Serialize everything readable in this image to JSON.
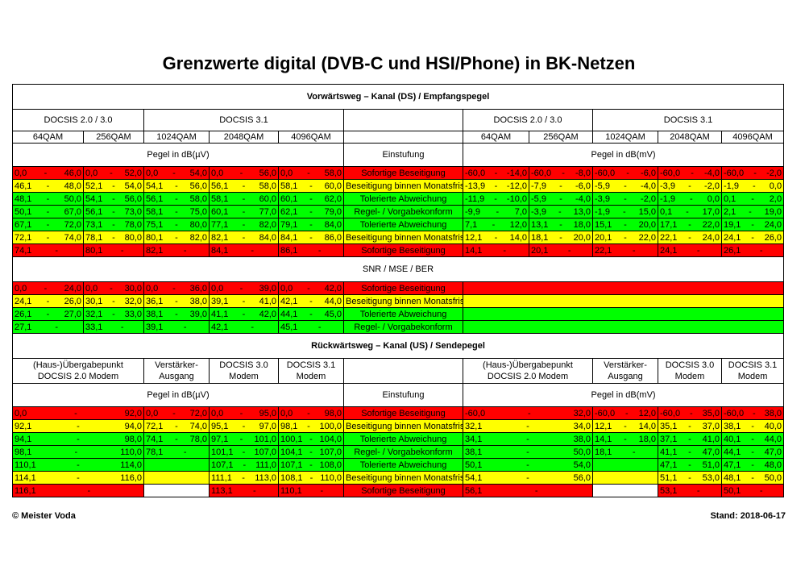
{
  "title": "Grenzwerte digital (DVB-C und HSI/Phone) in BK-Netzen",
  "footer": {
    "left": "© Meister Voda",
    "right": "Stand: 2018-06-17"
  },
  "colors": {
    "r": "#ff0000",
    "y": "#ffff00",
    "g": "#00ff00",
    "w": "#ffffff"
  },
  "downstream": {
    "title": "Vorwärtsweg – Kanal (DS) / Empfangspegel",
    "groups_left": [
      "DOCSIS 2.0 / 3.0",
      "DOCSIS 3.1"
    ],
    "groups_right": [
      "DOCSIS 2.0 / 3.0",
      "DOCSIS 3.1"
    ],
    "mods": [
      "64QAM",
      "256QAM",
      "1024QAM",
      "2048QAM",
      "4096QAM"
    ],
    "unit_left": "Pegel in dB(µV)",
    "unit_right": "Pegel in dB(mV)",
    "einstufung": "Einstufung",
    "rows": [
      {
        "color": "r",
        "label": "Sofortige Beseitigung",
        "left": [
          [
            "0,0",
            "46,0"
          ],
          [
            "0,0",
            "52,0"
          ],
          [
            "0,0",
            "54,0"
          ],
          [
            "0,0",
            "56,0"
          ],
          [
            "0,0",
            "58,0"
          ]
        ],
        "right": [
          [
            "-60,0",
            "-14,0"
          ],
          [
            "-60,0",
            "-8,0"
          ],
          [
            "-60,0",
            "-6,0"
          ],
          [
            "-60,0",
            "-4,0"
          ],
          [
            "-60,0",
            "-2,0"
          ]
        ]
      },
      {
        "color": "y",
        "label": "Beseitigung binnen Monatsfrist",
        "left": [
          [
            "46,1",
            "48,0"
          ],
          [
            "52,1",
            "54,0"
          ],
          [
            "54,1",
            "56,0"
          ],
          [
            "56,1",
            "58,0"
          ],
          [
            "58,1",
            "60,0"
          ]
        ],
        "right": [
          [
            "-13,9",
            "-12,0"
          ],
          [
            "-7,9",
            "-6,0"
          ],
          [
            "-5,9",
            "-4,0"
          ],
          [
            "-3,9",
            "-2,0"
          ],
          [
            "-1,9",
            "0,0"
          ]
        ]
      },
      {
        "color": "g",
        "label": "Tolerierte Abweichung",
        "left": [
          [
            "48,1",
            "50,0"
          ],
          [
            "54,1",
            "56,0"
          ],
          [
            "56,1",
            "58,0"
          ],
          [
            "58,1",
            "60,0"
          ],
          [
            "60,1",
            "62,0"
          ]
        ],
        "right": [
          [
            "-11,9",
            "-10,0"
          ],
          [
            "-5,9",
            "-4,0"
          ],
          [
            "-3,9",
            "-2,0"
          ],
          [
            "-1,9",
            "0,0"
          ],
          [
            "0,1",
            "2,0"
          ]
        ]
      },
      {
        "color": "g",
        "label": "Regel- / Vorgabekonform",
        "left": [
          [
            "50,1",
            "67,0"
          ],
          [
            "56,1",
            "73,0"
          ],
          [
            "58,1",
            "75,0"
          ],
          [
            "60,1",
            "77,0"
          ],
          [
            "62,1",
            "79,0"
          ]
        ],
        "right": [
          [
            "-9,9",
            "7,0"
          ],
          [
            "-3,9",
            "13,0"
          ],
          [
            "-1,9",
            "15,0"
          ],
          [
            "0,1",
            "17,0"
          ],
          [
            "2,1",
            "19,0"
          ]
        ]
      },
      {
        "color": "g",
        "label": "Tolerierte Abweichung",
        "left": [
          [
            "67,1",
            "72,0"
          ],
          [
            "73,1",
            "78,0"
          ],
          [
            "75,1",
            "80,0"
          ],
          [
            "77,1",
            "82,0"
          ],
          [
            "79,1",
            "84,0"
          ]
        ],
        "right": [
          [
            "7,1",
            "12,0"
          ],
          [
            "13,1",
            "18,0"
          ],
          [
            "15,1",
            "20,0"
          ],
          [
            "17,1",
            "22,0"
          ],
          [
            "19,1",
            "24,0"
          ]
        ]
      },
      {
        "color": "y",
        "label": "Beseitigung binnen Monatsfrist",
        "left": [
          [
            "72,1",
            "74,0"
          ],
          [
            "78,1",
            "80,0"
          ],
          [
            "80,1",
            "82,0"
          ],
          [
            "82,1",
            "84,0"
          ],
          [
            "84,1",
            "86,0"
          ]
        ],
        "right": [
          [
            "12,1",
            "14,0"
          ],
          [
            "18,1",
            "20,0"
          ],
          [
            "20,1",
            "22,0"
          ],
          [
            "22,1",
            "24,0"
          ],
          [
            "24,1",
            "26,0"
          ]
        ]
      },
      {
        "color": "r",
        "label": "Sofortige Beseitigung",
        "left": [
          [
            "74,1",
            ""
          ],
          [
            "80,1",
            ""
          ],
          [
            "82,1",
            ""
          ],
          [
            "84,1",
            ""
          ],
          [
            "86,1",
            ""
          ]
        ],
        "right": [
          [
            "14,1",
            ""
          ],
          [
            "20,1",
            ""
          ],
          [
            "22,1",
            ""
          ],
          [
            "24,1",
            ""
          ],
          [
            "26,1",
            ""
          ]
        ]
      }
    ]
  },
  "snr": {
    "title": "SNR / MSE / BER",
    "rows": [
      {
        "color": "r",
        "label": "Sofortige Beseitigung",
        "left": [
          [
            "0,0",
            "24,0"
          ],
          [
            "0,0",
            "30,0"
          ],
          [
            "0,0",
            "36,0"
          ],
          [
            "0,0",
            "39,0"
          ],
          [
            "0,0",
            "42,0"
          ]
        ]
      },
      {
        "color": "y",
        "label": "Beseitigung binnen Monatsfrist",
        "left": [
          [
            "24,1",
            "26,0"
          ],
          [
            "30,1",
            "32,0"
          ],
          [
            "36,1",
            "38,0"
          ],
          [
            "39,1",
            "41,0"
          ],
          [
            "42,1",
            "44,0"
          ]
        ]
      },
      {
        "color": "g",
        "label": "Tolerierte Abweichung",
        "left": [
          [
            "26,1",
            "27,0"
          ],
          [
            "32,1",
            "33,0"
          ],
          [
            "38,1",
            "39,0"
          ],
          [
            "41,1",
            "42,0"
          ],
          [
            "44,1",
            "45,0"
          ]
        ]
      },
      {
        "color": "g",
        "label": "Regel- / Vorgabekonform",
        "left": [
          [
            "27,1",
            ""
          ],
          [
            "33,1",
            ""
          ],
          [
            "39,1",
            ""
          ],
          [
            "42,1",
            ""
          ],
          [
            "45,1",
            ""
          ]
        ]
      }
    ]
  },
  "upstream": {
    "title": "Rückwärtsweg – Kanal (US) / Sendepegel",
    "heads_left": [
      [
        "(Haus-)Übergabepunkt",
        "DOCSIS 2.0 Modem"
      ],
      [
        "Verstärker-",
        "Ausgang"
      ],
      [
        "DOCSIS 3.0",
        "Modem"
      ],
      [
        "DOCSIS 3.1",
        "Modem"
      ]
    ],
    "heads_right": [
      [
        "(Haus-)Übergabepunkt",
        "DOCSIS 2.0 Modem"
      ],
      [
        "Verstärker-",
        "Ausgang"
      ],
      [
        "DOCSIS 3.0",
        "Modem"
      ],
      [
        "DOCSIS 3.1",
        "Modem"
      ]
    ],
    "unit_left": "Pegel in dB(µV)",
    "unit_right": "Pegel in dB(mV)",
    "einstufung": "Einstufung",
    "rows": [
      {
        "color": "r",
        "label": "Sofortige Beseitigung",
        "left": [
          {
            "c": "r",
            "v": [
              "0,0",
              "92,0"
            ]
          },
          {
            "c": "r",
            "v": [
              "0,0",
              "72,0"
            ]
          },
          {
            "c": "r",
            "v": [
              "0,0",
              "95,0"
            ]
          },
          {
            "c": "r",
            "v": [
              "0,0",
              "98,0"
            ]
          }
        ],
        "right": [
          {
            "c": "r",
            "v": [
              "-60,0",
              "32,0"
            ]
          },
          {
            "c": "r",
            "v": [
              "-60,0",
              "12,0"
            ]
          },
          {
            "c": "r",
            "v": [
              "-60,0",
              "35,0"
            ]
          },
          {
            "c": "r",
            "v": [
              "-60,0",
              "38,0"
            ]
          }
        ]
      },
      {
        "color": "y",
        "label": "Beseitigung binnen Monatsfrist",
        "left": [
          {
            "c": "y",
            "v": [
              "92,1",
              "94,0"
            ]
          },
          {
            "c": "y",
            "v": [
              "72,1",
              "74,0"
            ]
          },
          {
            "c": "y",
            "v": [
              "95,1",
              "97,0"
            ]
          },
          {
            "c": "y",
            "v": [
              "98,1",
              "100,0"
            ]
          }
        ],
        "right": [
          {
            "c": "y",
            "v": [
              "32,1",
              "34,0"
            ]
          },
          {
            "c": "y",
            "v": [
              "12,1",
              "14,0"
            ]
          },
          {
            "c": "y",
            "v": [
              "35,1",
              "37,0"
            ]
          },
          {
            "c": "y",
            "v": [
              "38,1",
              "40,0"
            ]
          }
        ]
      },
      {
        "color": "g",
        "label": "Tolerierte Abweichung",
        "left": [
          {
            "c": "g",
            "v": [
              "94,1",
              "98,0"
            ]
          },
          {
            "c": "g",
            "v": [
              "74,1",
              "78,0"
            ]
          },
          {
            "c": "g",
            "v": [
              "97,1",
              "101,0"
            ]
          },
          {
            "c": "g",
            "v": [
              "100,1",
              "104,0"
            ]
          }
        ],
        "right": [
          {
            "c": "g",
            "v": [
              "34,1",
              "38,0"
            ]
          },
          {
            "c": "g",
            "v": [
              "14,1",
              "18,0"
            ]
          },
          {
            "c": "g",
            "v": [
              "37,1",
              "41,0"
            ]
          },
          {
            "c": "g",
            "v": [
              "40,1",
              "44,0"
            ]
          }
        ]
      },
      {
        "color": "g",
        "label": "Regel- / Vorgabekonform",
        "left": [
          {
            "c": "g",
            "v": [
              "98,1",
              "110,0"
            ]
          },
          {
            "c": "g",
            "v": [
              "78,1",
              ""
            ]
          },
          {
            "c": "g",
            "v": [
              "101,1",
              "107,0"
            ]
          },
          {
            "c": "g",
            "v": [
              "104,1",
              "107,0"
            ]
          }
        ],
        "right": [
          {
            "c": "g",
            "v": [
              "38,1",
              "50,0"
            ]
          },
          {
            "c": "g",
            "v": [
              "18,1",
              ""
            ]
          },
          {
            "c": "g",
            "v": [
              "41,1",
              "47,0"
            ]
          },
          {
            "c": "g",
            "v": [
              "44,1",
              "47,0"
            ]
          }
        ]
      },
      {
        "color": "g",
        "label": "Tolerierte Abweichung",
        "left": [
          {
            "c": "g",
            "v": [
              "110,1",
              "114,0"
            ]
          },
          {
            "c": "g",
            "v": [
              "",
              ""
            ]
          },
          {
            "c": "g",
            "v": [
              "107,1",
              "111,0"
            ]
          },
          {
            "c": "g",
            "v": [
              "107,1",
              "108,0"
            ]
          }
        ],
        "right": [
          {
            "c": "g",
            "v": [
              "50,1",
              "54,0"
            ]
          },
          {
            "c": "g",
            "v": [
              "",
              ""
            ]
          },
          {
            "c": "g",
            "v": [
              "47,1",
              "51,0"
            ]
          },
          {
            "c": "g",
            "v": [
              "47,1",
              "48,0"
            ]
          }
        ]
      },
      {
        "color": "y",
        "label": "Beseitigung binnen Monatsfrist",
        "left": [
          {
            "c": "y",
            "v": [
              "114,1",
              "116,0"
            ]
          },
          {
            "c": "y",
            "v": [
              "",
              ""
            ]
          },
          {
            "c": "y",
            "v": [
              "111,1",
              "113,0"
            ]
          },
          {
            "c": "y",
            "v": [
              "108,1",
              "110,0"
            ]
          }
        ],
        "right": [
          {
            "c": "y",
            "v": [
              "54,1",
              "56,0"
            ]
          },
          {
            "c": "y",
            "v": [
              "",
              ""
            ]
          },
          {
            "c": "y",
            "v": [
              "51,1",
              "53,0"
            ]
          },
          {
            "c": "y",
            "v": [
              "48,1",
              "50,0"
            ]
          }
        ]
      },
      {
        "color": "r",
        "label": "Sofortige Beseitigung",
        "left": [
          {
            "c": "r",
            "v": [
              "116,1",
              ""
            ]
          },
          {
            "c": "w",
            "v": [
              "",
              ""
            ]
          },
          {
            "c": "r",
            "v": [
              "113,1",
              ""
            ]
          },
          {
            "c": "r",
            "v": [
              "110,1",
              ""
            ]
          }
        ],
        "right": [
          {
            "c": "r",
            "v": [
              "56,1",
              ""
            ]
          },
          {
            "c": "w",
            "v": [
              "",
              ""
            ]
          },
          {
            "c": "r",
            "v": [
              "53,1",
              ""
            ]
          },
          {
            "c": "r",
            "v": [
              "50,1",
              ""
            ]
          }
        ]
      }
    ]
  }
}
